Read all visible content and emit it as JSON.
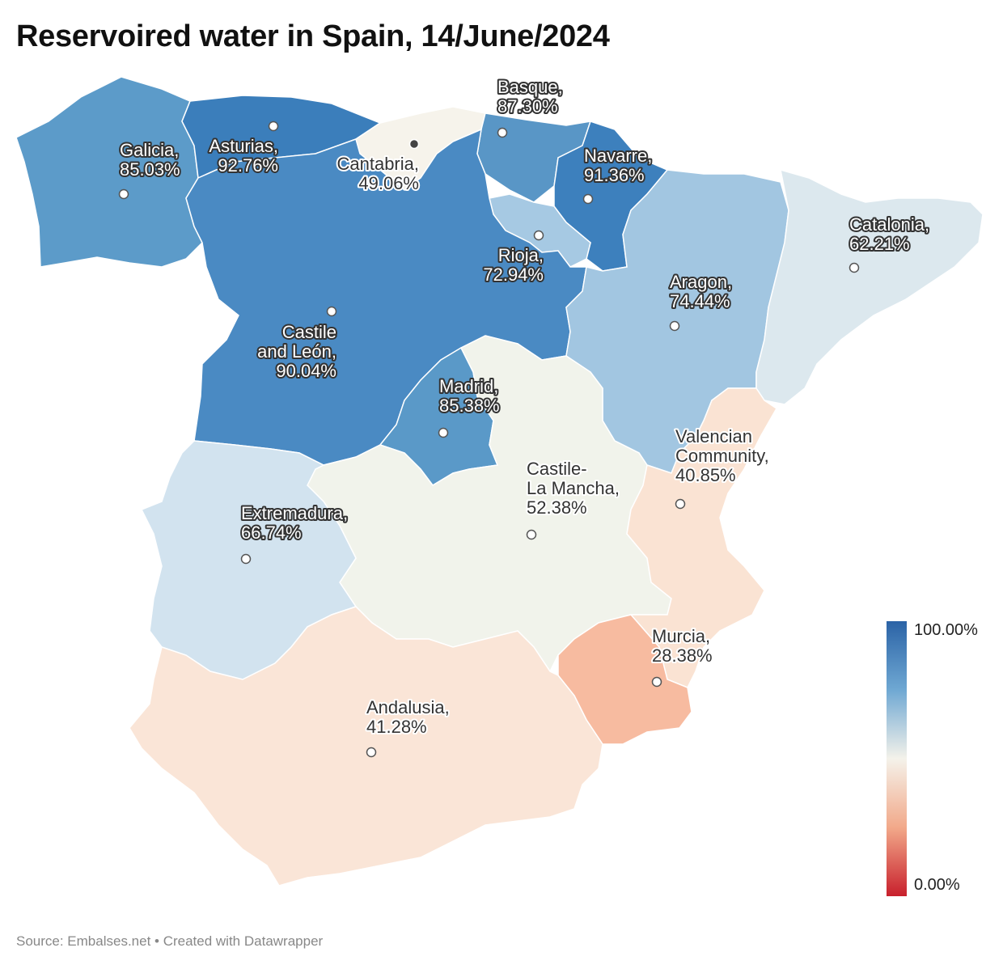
{
  "title": "Reservoired water in Spain, 14/June/2024",
  "footer": "Source: Embalses.net • Created with Datawrapper",
  "legend": {
    "max_label": "100.00%",
    "min_label": "0.00%",
    "color_high": "#2b63a6",
    "color_mid": "#f4f2ea",
    "color_low": "#c8202c"
  },
  "colors": {
    "border": "#ffffff"
  },
  "regions": [
    {
      "id": "galicia",
      "lines": [
        "Galicia,",
        "85.03%"
      ],
      "value": 85.03,
      "fill": "#5c9bc9"
    },
    {
      "id": "asturias",
      "lines": [
        "Asturias,",
        "92.76%"
      ],
      "value": 92.76,
      "fill": "#3b7ebb"
    },
    {
      "id": "cantabria",
      "lines": [
        "Cantabria,",
        "49.06%"
      ],
      "value": 49.06,
      "fill": "#f6f3eb"
    },
    {
      "id": "basque",
      "lines": [
        "Basque,",
        "87.30%"
      ],
      "value": 87.3,
      "fill": "#5996c6"
    },
    {
      "id": "navarre",
      "lines": [
        "Navarre,",
        "91.36%"
      ],
      "value": 91.36,
      "fill": "#3d80bd"
    },
    {
      "id": "rioja",
      "lines": [
        "Rioja,",
        "72.94%"
      ],
      "value": 72.94,
      "fill": "#a6c9e3"
    },
    {
      "id": "aragon",
      "lines": [
        "Aragon,",
        "74.44%"
      ],
      "value": 74.44,
      "fill": "#a2c6e1"
    },
    {
      "id": "catalonia",
      "lines": [
        "Catalonia,",
        "62.21%"
      ],
      "value": 62.21,
      "fill": "#dce8ee"
    },
    {
      "id": "castile-leon",
      "lines": [
        "Castile",
        "and León,",
        "90.04%"
      ],
      "value": 90.04,
      "fill": "#4a8ac3"
    },
    {
      "id": "madrid",
      "lines": [
        "Madrid,",
        "85.38%"
      ],
      "value": 85.38,
      "fill": "#5a99c8"
    },
    {
      "id": "castile-la-mancha",
      "lines": [
        "Castile-",
        "La Mancha,",
        "52.38%"
      ],
      "value": 52.38,
      "fill": "#f1f3eb"
    },
    {
      "id": "valencian-community",
      "lines": [
        "Valencian",
        "Community,",
        "40.85%"
      ],
      "value": 40.85,
      "fill": "#fae3d3"
    },
    {
      "id": "extremadura",
      "lines": [
        "Extremadura,",
        "66.74%"
      ],
      "value": 66.74,
      "fill": "#d2e3ef"
    },
    {
      "id": "murcia",
      "lines": [
        "Murcia,",
        "28.38%"
      ],
      "value": 28.38,
      "fill": "#f7bba0"
    },
    {
      "id": "andalusia",
      "lines": [
        "Andalusia,",
        "41.28%"
      ],
      "value": 41.28,
      "fill": "#fae5d7"
    }
  ]
}
